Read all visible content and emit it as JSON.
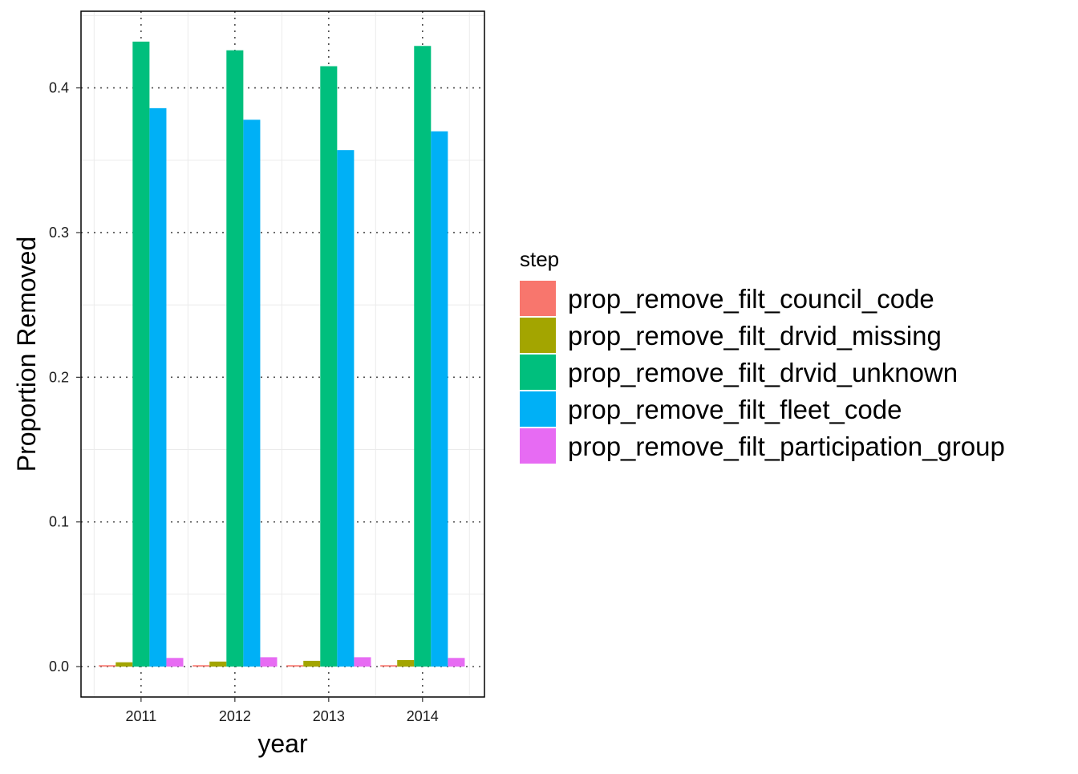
{
  "chart_data": {
    "type": "bar",
    "title": "",
    "xlabel": "year",
    "ylabel": "Proportion Removed",
    "categories": [
      "2011",
      "2012",
      "2013",
      "2014"
    ],
    "ylim": [
      -0.021,
      0.453
    ],
    "yticks": [
      0.0,
      0.1,
      0.2,
      0.3,
      0.4
    ],
    "ytick_labels": [
      "0.0",
      "0.1",
      "0.2",
      "0.3",
      "0.4"
    ],
    "grid": true,
    "legend": {
      "title": "step",
      "placement": "right"
    },
    "series": [
      {
        "name": "prop_remove_filt_council_code",
        "color": "#F8766D",
        "values": [
          0.001,
          0.001,
          0.001,
          0.001
        ]
      },
      {
        "name": "prop_remove_filt_drvid_missing",
        "color": "#A3A500",
        "values": [
          0.003,
          0.0035,
          0.004,
          0.0045
        ]
      },
      {
        "name": "prop_remove_filt_drvid_unknown",
        "color": "#00BF7D",
        "values": [
          0.432,
          0.426,
          0.415,
          0.429
        ]
      },
      {
        "name": "prop_remove_filt_fleet_code",
        "color": "#00B0F6",
        "values": [
          0.386,
          0.378,
          0.357,
          0.37
        ]
      },
      {
        "name": "prop_remove_filt_participation_group",
        "color": "#E76BF3",
        "values": [
          0.006,
          0.0065,
          0.0065,
          0.006
        ]
      }
    ]
  }
}
